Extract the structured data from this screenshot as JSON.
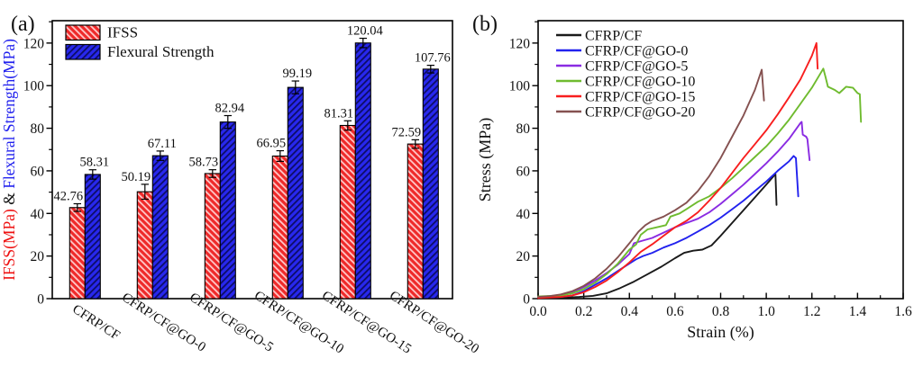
{
  "figure": {
    "panel_a_label": "(a)",
    "panel_b_label": "(b)"
  },
  "chart_data": [
    {
      "id": "panel-a",
      "type": "bar",
      "panel_label": "(a)",
      "categories": [
        "CFRP/CF",
        "CFRP/CF@GO-0",
        "CFRP/CF@GO-5",
        "CFRP/CF@GO-10",
        "CFRP/CF@GO-15",
        "CFRP/CF@GO-20"
      ],
      "series": [
        {
          "name": "IFSS",
          "color": "#ee2a2a",
          "hatch": "/",
          "hatch_stripe": "#ffc9c9",
          "values": [
            42.76,
            50.19,
            58.73,
            66.95,
            81.31,
            72.59
          ],
          "labels": [
            "42.76",
            "50.19",
            "58.73",
            "66.95",
            "81.31",
            "72.59"
          ],
          "errors": [
            1.8,
            3.5,
            1.8,
            2.5,
            2.2,
            2.0
          ]
        },
        {
          "name": "Flexural Strength",
          "color": "#2828ee",
          "hatch": "\\",
          "hatch_stripe": "#0d0d66",
          "values": [
            58.31,
            67.11,
            82.94,
            99.19,
            120.04,
            107.76
          ],
          "labels": [
            "58.31",
            "67.11",
            "82.94",
            "99.19",
            "120.04",
            "107.76"
          ],
          "errors": [
            2.2,
            2.2,
            3.0,
            3.0,
            2.2,
            1.8
          ]
        }
      ],
      "ylabel_parts": [
        {
          "text": "IFSS(MPa)",
          "color": "#ee1111"
        },
        {
          "text": " & ",
          "color": "#111111"
        },
        {
          "text": "Flexural Strength(MPa)",
          "color": "#2222ee"
        }
      ],
      "yticks": [
        0,
        20,
        40,
        60,
        80,
        100,
        120
      ],
      "ylim": [
        0,
        130.5
      ],
      "legend_position": "top-left",
      "grid": false
    },
    {
      "id": "panel-b",
      "type": "line",
      "panel_label": "(b)",
      "xlabel": "Strain (%)",
      "ylabel": "Stress (MPa)",
      "xticks": [
        "0.0",
        "0.2",
        "0.4",
        "0.6",
        "0.8",
        "1.0",
        "1.2",
        "1.4",
        "1.6"
      ],
      "yticks": [
        0,
        20,
        40,
        60,
        80,
        100,
        120
      ],
      "xlim": [
        0,
        1.6
      ],
      "ylim": [
        0,
        130.5
      ],
      "legend_position": "top-left",
      "grid": false,
      "series": [
        {
          "name": "CFRP/CF",
          "color": "#1a1a1a",
          "points": [
            [
              0,
              0.3
            ],
            [
              0.06,
              0.3
            ],
            [
              0.12,
              0.5
            ],
            [
              0.18,
              0.8
            ],
            [
              0.24,
              1.3
            ],
            [
              0.3,
              2.5
            ],
            [
              0.36,
              5
            ],
            [
              0.42,
              8
            ],
            [
              0.48,
              11.5
            ],
            [
              0.54,
              15
            ],
            [
              0.6,
              19
            ],
            [
              0.64,
              21.5
            ],
            [
              0.68,
              22.5
            ],
            [
              0.72,
              23
            ],
            [
              0.76,
              25
            ],
            [
              0.8,
              29.5
            ],
            [
              0.85,
              35.5
            ],
            [
              0.9,
              41.5
            ],
            [
              0.95,
              47.5
            ],
            [
              1.0,
              53.5
            ],
            [
              1.04,
              58.5
            ],
            [
              1.045,
              44
            ]
          ]
        },
        {
          "name": "CFRP/CF@GO-0",
          "color": "#2222ee",
          "points": [
            [
              0,
              0.5
            ],
            [
              0.1,
              0.8
            ],
            [
              0.15,
              1.5
            ],
            [
              0.2,
              3.5
            ],
            [
              0.25,
              6.5
            ],
            [
              0.3,
              9.5
            ],
            [
              0.35,
              13
            ],
            [
              0.4,
              16.5
            ],
            [
              0.43,
              18.5
            ],
            [
              0.46,
              20
            ],
            [
              0.5,
              21.5
            ],
            [
              0.55,
              24
            ],
            [
              0.6,
              26
            ],
            [
              0.65,
              28.5
            ],
            [
              0.7,
              31.5
            ],
            [
              0.75,
              34.5
            ],
            [
              0.8,
              38
            ],
            [
              0.85,
              42
            ],
            [
              0.9,
              46
            ],
            [
              0.95,
              50.5
            ],
            [
              1.0,
              55
            ],
            [
              1.05,
              60
            ],
            [
              1.1,
              64.5
            ],
            [
              1.12,
              67
            ],
            [
              1.13,
              66
            ],
            [
              1.14,
              48
            ]
          ]
        },
        {
          "name": "CFRP/CF@GO-5",
          "color": "#8a2be2",
          "points": [
            [
              0,
              0.8
            ],
            [
              0.1,
              1.5
            ],
            [
              0.15,
              3
            ],
            [
              0.2,
              5.5
            ],
            [
              0.25,
              8.5
            ],
            [
              0.3,
              12
            ],
            [
              0.35,
              16
            ],
            [
              0.4,
              21
            ],
            [
              0.42,
              26
            ],
            [
              0.45,
              27
            ],
            [
              0.5,
              28.5
            ],
            [
              0.55,
              31
            ],
            [
              0.6,
              33.5
            ],
            [
              0.65,
              35.5
            ],
            [
              0.7,
              37.5
            ],
            [
              0.75,
              40.5
            ],
            [
              0.8,
              44.5
            ],
            [
              0.85,
              49
            ],
            [
              0.9,
              53.5
            ],
            [
              0.95,
              58.5
            ],
            [
              1.0,
              63.5
            ],
            [
              1.05,
              69
            ],
            [
              1.1,
              75
            ],
            [
              1.15,
              82.5
            ],
            [
              1.155,
              83
            ],
            [
              1.16,
              77
            ],
            [
              1.175,
              76
            ],
            [
              1.18,
              75
            ],
            [
              1.19,
              65
            ]
          ]
        },
        {
          "name": "CFRP/CF@GO-10",
          "color": "#6fbb2f",
          "points": [
            [
              0,
              1
            ],
            [
              0.1,
              1.5
            ],
            [
              0.15,
              2.5
            ],
            [
              0.2,
              4.5
            ],
            [
              0.25,
              7.5
            ],
            [
              0.3,
              11.5
            ],
            [
              0.35,
              16.5
            ],
            [
              0.4,
              23
            ],
            [
              0.43,
              25.5
            ],
            [
              0.45,
              30
            ],
            [
              0.48,
              32.5
            ],
            [
              0.52,
              33.5
            ],
            [
              0.56,
              34.5
            ],
            [
              0.58,
              38.5
            ],
            [
              0.62,
              40
            ],
            [
              0.65,
              42
            ],
            [
              0.7,
              45.5
            ],
            [
              0.75,
              48
            ],
            [
              0.8,
              52
            ],
            [
              0.85,
              56.5
            ],
            [
              0.9,
              61.5
            ],
            [
              0.95,
              66.5
            ],
            [
              1.0,
              71.5
            ],
            [
              1.05,
              77.5
            ],
            [
              1.1,
              84
            ],
            [
              1.15,
              91.5
            ],
            [
              1.2,
              99
            ],
            [
              1.25,
              108
            ],
            [
              1.26,
              104
            ],
            [
              1.27,
              99.5
            ],
            [
              1.3,
              98
            ],
            [
              1.32,
              96.5
            ],
            [
              1.35,
              99.5
            ],
            [
              1.38,
              99
            ],
            [
              1.4,
              96.5
            ],
            [
              1.41,
              96
            ],
            [
              1.415,
              83
            ]
          ]
        },
        {
          "name": "CFRP/CF@GO-15",
          "color": "#f81e1e",
          "points": [
            [
              0,
              0.3
            ],
            [
              0.1,
              0.8
            ],
            [
              0.15,
              1.5
            ],
            [
              0.2,
              3
            ],
            [
              0.25,
              5.5
            ],
            [
              0.3,
              8.5
            ],
            [
              0.35,
              12.5
            ],
            [
              0.4,
              17
            ],
            [
              0.45,
              22
            ],
            [
              0.5,
              25.5
            ],
            [
              0.55,
              29.5
            ],
            [
              0.6,
              33.5
            ],
            [
              0.65,
              36.5
            ],
            [
              0.7,
              40.5
            ],
            [
              0.75,
              46
            ],
            [
              0.8,
              52
            ],
            [
              0.85,
              59
            ],
            [
              0.9,
              66
            ],
            [
              0.95,
              72.5
            ],
            [
              1.0,
              79
            ],
            [
              1.05,
              86.5
            ],
            [
              1.1,
              94.5
            ],
            [
              1.15,
              103
            ],
            [
              1.2,
              114
            ],
            [
              1.22,
              120
            ],
            [
              1.225,
              108
            ]
          ]
        },
        {
          "name": "CFRP/CF@GO-20",
          "color": "#855150",
          "points": [
            [
              0,
              0.8
            ],
            [
              0.05,
              1.2
            ],
            [
              0.1,
              2
            ],
            [
              0.15,
              3.5
            ],
            [
              0.2,
              6
            ],
            [
              0.25,
              9.5
            ],
            [
              0.3,
              14
            ],
            [
              0.35,
              19.5
            ],
            [
              0.4,
              26
            ],
            [
              0.44,
              31.5
            ],
            [
              0.47,
              34.5
            ],
            [
              0.5,
              36.5
            ],
            [
              0.55,
              38.5
            ],
            [
              0.6,
              41.5
            ],
            [
              0.65,
              45
            ],
            [
              0.7,
              50.5
            ],
            [
              0.75,
              57.5
            ],
            [
              0.8,
              66
            ],
            [
              0.85,
              76
            ],
            [
              0.9,
              86
            ],
            [
              0.95,
              98
            ],
            [
              0.98,
              107.5
            ],
            [
              0.99,
              93
            ]
          ]
        }
      ]
    }
  ]
}
